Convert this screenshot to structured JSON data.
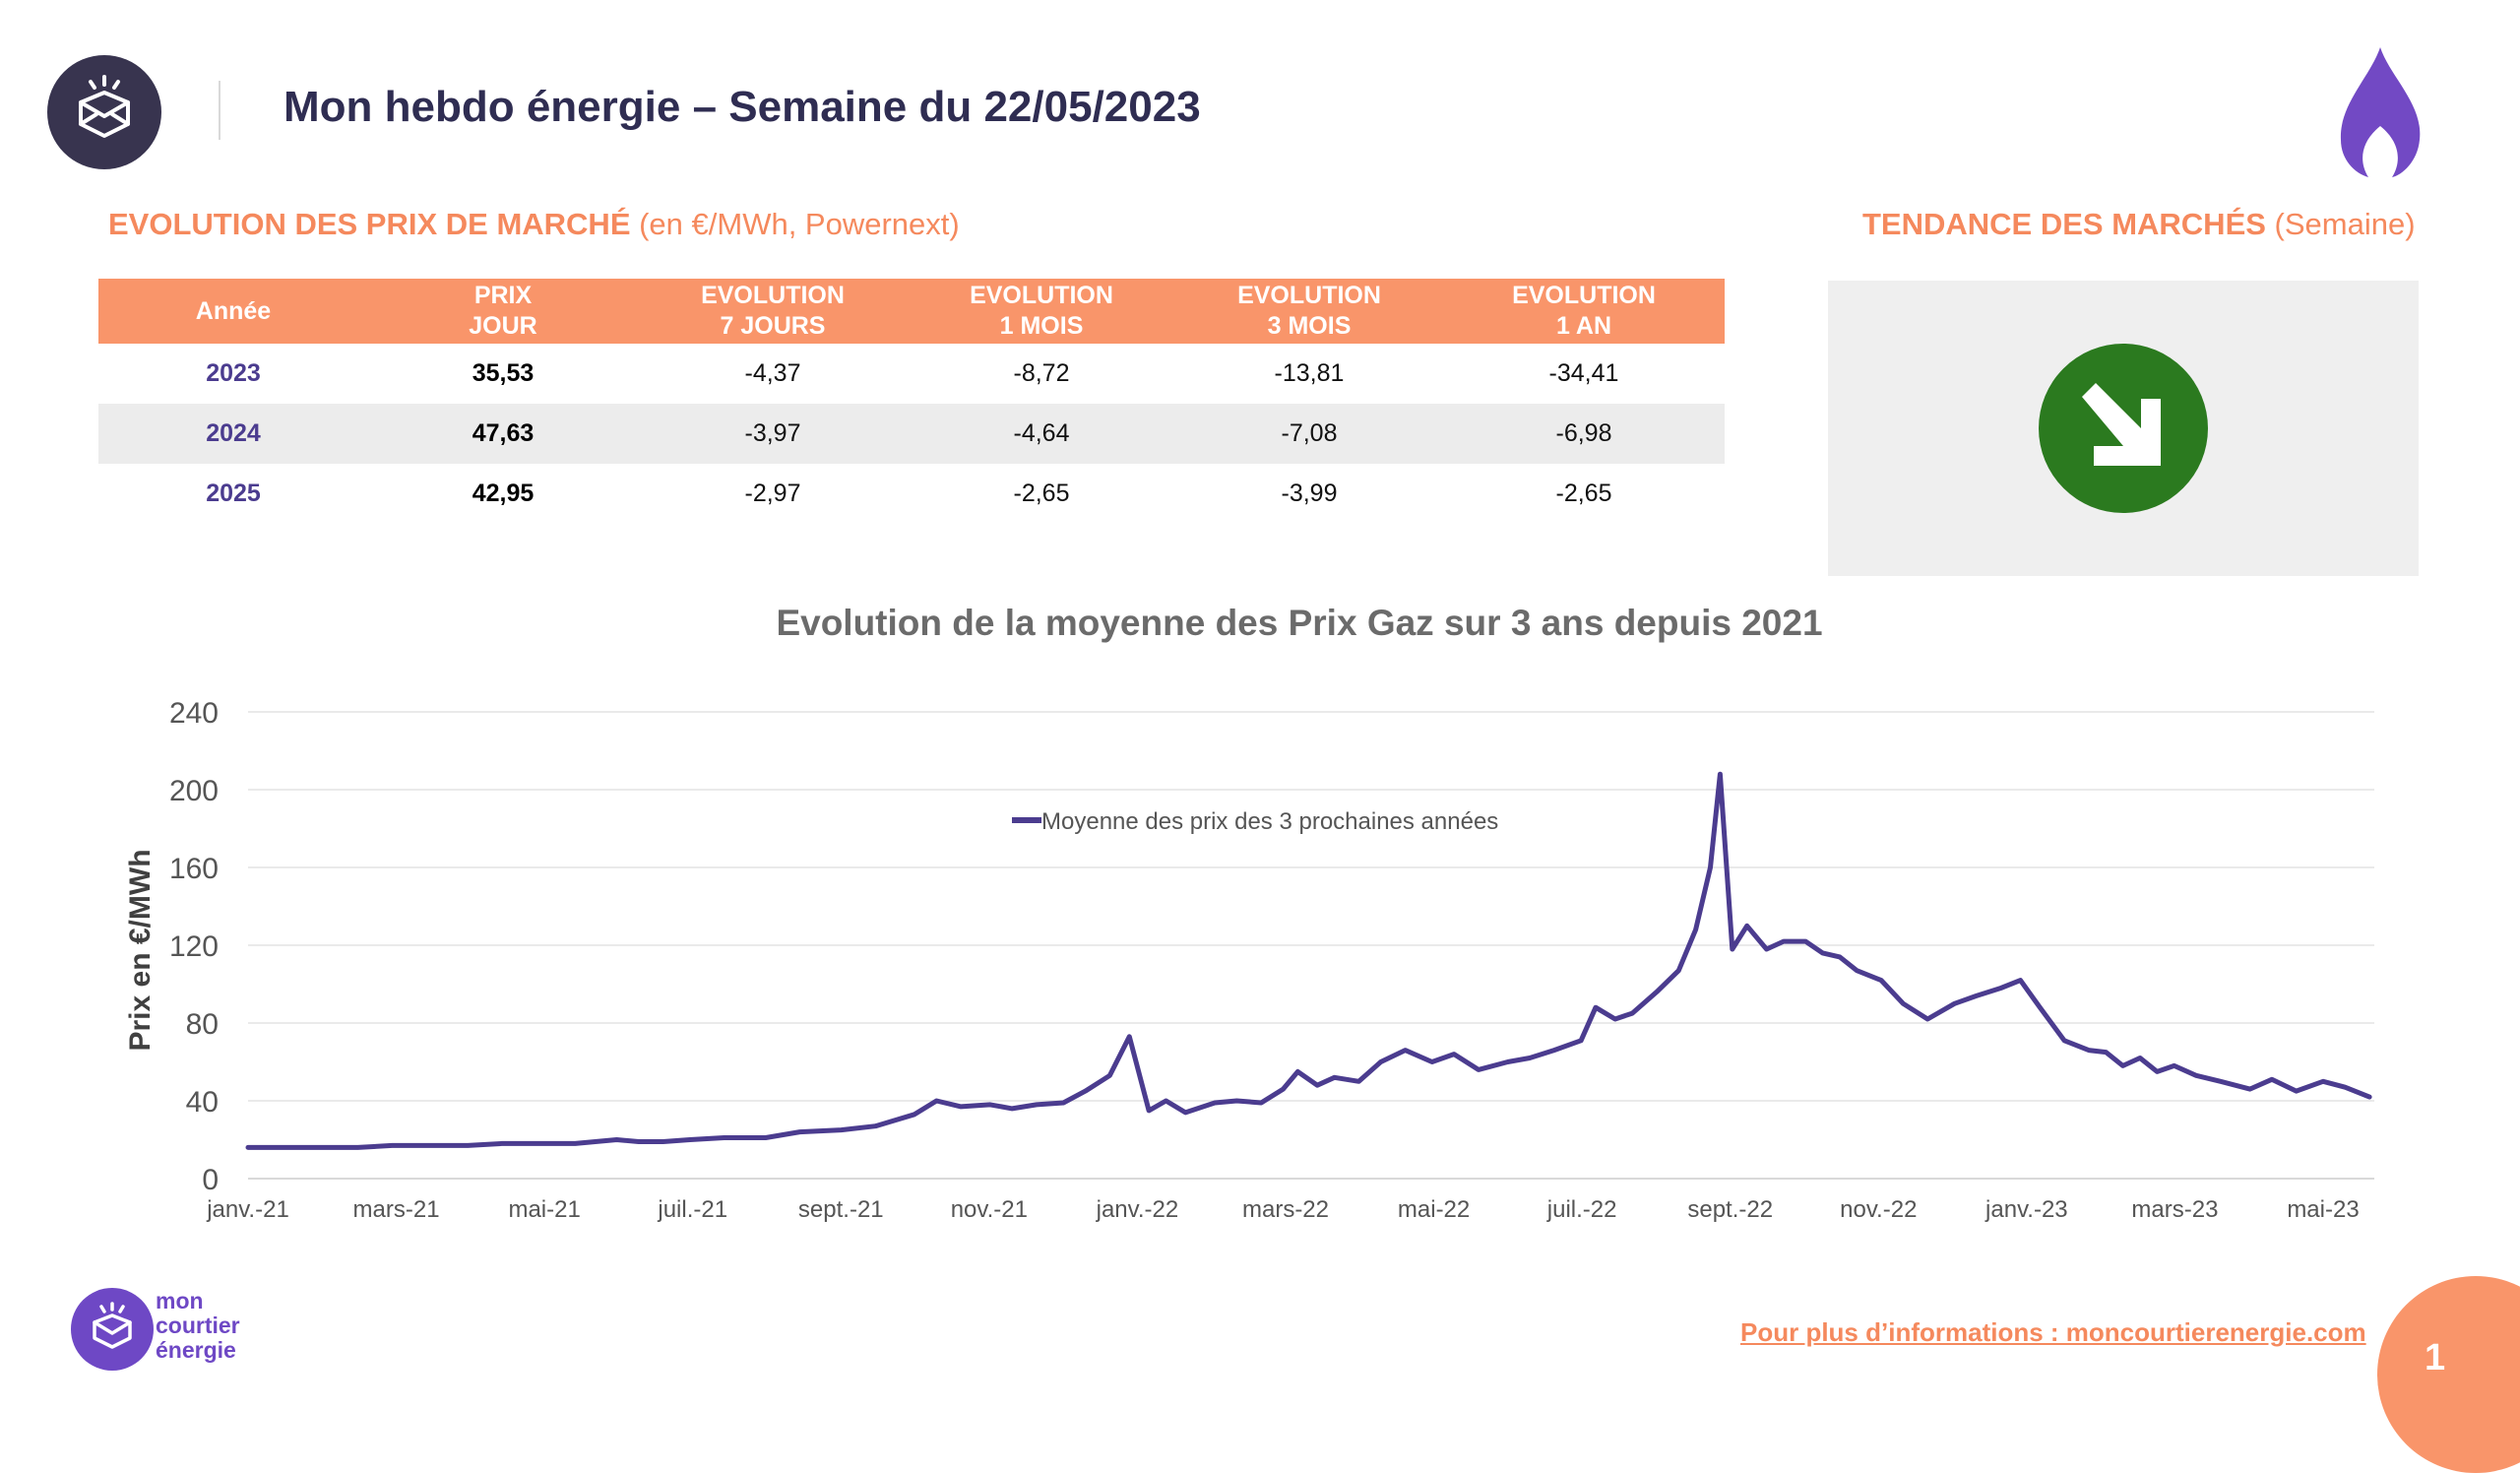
{
  "header": {
    "title": "Mon hebdo énergie – Semaine du 22/05/2023",
    "logo_icon": "envelope-sun-badge-icon",
    "flame_icon": "gas-flame-icon"
  },
  "market_section": {
    "title_bold": "EVOLUTION DES PRIX DE MARCHÉ",
    "title_light": " (en €/MWh, Powernext)"
  },
  "trend_section": {
    "title_bold": "TENDANCE DES MARCHÉS",
    "title_light": " (Semaine)",
    "trend_icon": "down-right-arrow-icon",
    "trend_direction": "down"
  },
  "table": {
    "headers": [
      {
        "l1": "Année",
        "l2": ""
      },
      {
        "l1": "PRIX",
        "l2": "JOUR"
      },
      {
        "l1": "EVOLUTION",
        "l2": "7 JOURS"
      },
      {
        "l1": "EVOLUTION",
        "l2": "1 MOIS"
      },
      {
        "l1": "EVOLUTION",
        "l2": "3 MOIS"
      },
      {
        "l1": "EVOLUTION",
        "l2": "1 AN"
      }
    ],
    "rows": [
      [
        "2023",
        "35,53",
        "-4,37",
        "-8,72",
        "-13,81",
        "-34,41"
      ],
      [
        "2024",
        "47,63",
        "-3,97",
        "-4,64",
        "-7,08",
        "-6,98"
      ],
      [
        "2025",
        "42,95",
        "-2,97",
        "-2,65",
        "-3,99",
        "-2,65"
      ]
    ]
  },
  "chart_data": {
    "type": "line",
    "title": "Evolution de la moyenne des Prix Gaz sur 3 ans depuis 2021",
    "xlabel": "",
    "ylabel": "Prix en €/MWh",
    "ylim": [
      0,
      240
    ],
    "yticks": [
      0,
      40,
      80,
      120,
      160,
      200,
      240
    ],
    "xticks": [
      "janv.-21",
      "mars-21",
      "mai-21",
      "juil.-21",
      "sept.-21",
      "nov.-21",
      "janv.-22",
      "mars-22",
      "mai-22",
      "juil.-22",
      "sept.-22",
      "nov.-22",
      "janv.-23",
      "mars-23",
      "mai-23"
    ],
    "x_start": "2021-01",
    "x_end": "2023-05",
    "grid": true,
    "legend_position": "top-center",
    "color": "#4b3c8f",
    "series": [
      {
        "name": "Moyenne des prix des 3 prochaines années",
        "x": [
          "2021-01-01",
          "2021-01-15",
          "2021-02-01",
          "2021-02-15",
          "2021-03-01",
          "2021-03-15",
          "2021-04-01",
          "2021-04-15",
          "2021-05-01",
          "2021-05-15",
          "2021-06-01",
          "2021-06-10",
          "2021-06-20",
          "2021-07-01",
          "2021-07-15",
          "2021-08-01",
          "2021-08-15",
          "2021-09-01",
          "2021-09-15",
          "2021-10-01",
          "2021-10-10",
          "2021-10-20",
          "2021-11-01",
          "2021-11-10",
          "2021-11-20",
          "2021-12-01",
          "2021-12-10",
          "2021-12-20",
          "2021-12-28",
          "2022-01-05",
          "2022-01-12",
          "2022-01-20",
          "2022-02-01",
          "2022-02-10",
          "2022-02-20",
          "2022-03-01",
          "2022-03-07",
          "2022-03-15",
          "2022-03-22",
          "2022-04-01",
          "2022-04-10",
          "2022-04-20",
          "2022-05-01",
          "2022-05-10",
          "2022-05-20",
          "2022-06-01",
          "2022-06-10",
          "2022-06-20",
          "2022-07-01",
          "2022-07-07",
          "2022-07-15",
          "2022-07-22",
          "2022-08-01",
          "2022-08-10",
          "2022-08-17",
          "2022-08-23",
          "2022-08-27",
          "2022-09-01",
          "2022-09-07",
          "2022-09-15",
          "2022-09-22",
          "2022-10-01",
          "2022-10-08",
          "2022-10-15",
          "2022-10-22",
          "2022-11-01",
          "2022-11-10",
          "2022-11-20",
          "2022-12-01",
          "2022-12-10",
          "2022-12-20",
          "2022-12-28",
          "2023-01-05",
          "2023-01-15",
          "2023-01-25",
          "2023-02-01",
          "2023-02-08",
          "2023-02-15",
          "2023-02-22",
          "2023-03-01",
          "2023-03-10",
          "2023-03-20",
          "2023-04-01",
          "2023-04-10",
          "2023-04-20",
          "2023-05-01",
          "2023-05-10",
          "2023-05-20"
        ],
        "y": [
          16,
          16,
          16,
          16,
          17,
          17,
          17,
          18,
          18,
          18,
          20,
          19,
          19,
          20,
          21,
          21,
          24,
          25,
          27,
          33,
          40,
          37,
          38,
          36,
          38,
          39,
          45,
          53,
          73,
          35,
          40,
          34,
          39,
          40,
          39,
          46,
          55,
          48,
          52,
          50,
          60,
          66,
          60,
          64,
          56,
          60,
          62,
          66,
          71,
          88,
          82,
          85,
          96,
          107,
          128,
          160,
          208,
          118,
          130,
          118,
          122,
          122,
          116,
          114,
          107,
          102,
          90,
          82,
          90,
          94,
          98,
          102,
          88,
          71,
          66,
          65,
          58,
          62,
          55,
          58,
          53,
          50,
          46,
          51,
          45,
          50,
          47,
          42
        ]
      }
    ]
  },
  "footer": {
    "brand_lines": [
      "mon",
      "courtier",
      "énergie"
    ],
    "brand_icon": "envelope-sun-badge-icon",
    "link": "Pour plus d’informations : moncourtierenergie.com",
    "page_number": "1"
  }
}
